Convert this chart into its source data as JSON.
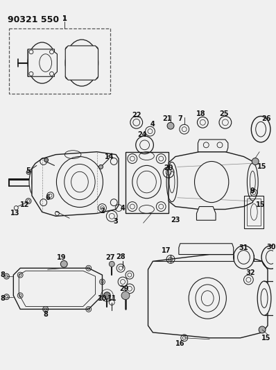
{
  "title": "90321 550",
  "bg": "#f0f0f0",
  "lc": "#1a1a1a",
  "tc": "#111111",
  "fw": 3.98,
  "fh": 5.33,
  "dpi": 100
}
